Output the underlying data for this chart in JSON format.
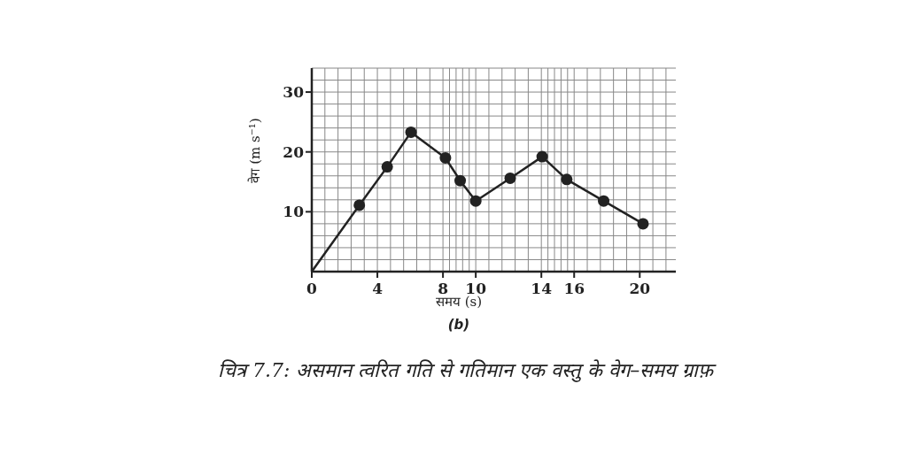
{
  "chart_data": {
    "type": "line",
    "xlabel": "समय (s)",
    "ylabel": "वेग (m s⁻¹)",
    "annotations": [
      "(b)",
      "चित्र 7.7: असमान त्वरित गति से गतिमान एक वस्तु के वेग–समय ग्राफ़"
    ],
    "x": [
      0,
      2.9,
      4.6,
      6.05,
      8.15,
      9.05,
      10.0,
      12.1,
      14.05,
      15.55,
      17.8,
      20.2
    ],
    "series": [
      {
        "color": "#222222",
        "values": [
          0,
          11.1,
          17.5,
          23.3,
          19.0,
          15.2,
          11.8,
          15.6,
          19.2,
          15.4,
          11.8,
          8.0
        ]
      }
    ],
    "xlim": [
      0,
      22.2
    ],
    "xticks": [
      0,
      4,
      8,
      10,
      14,
      16,
      20
    ],
    "ylim": [
      0,
      34
    ],
    "yticks": [
      10,
      20,
      30
    ],
    "grid": true,
    "marker": "circle",
    "line_style": "solid"
  }
}
